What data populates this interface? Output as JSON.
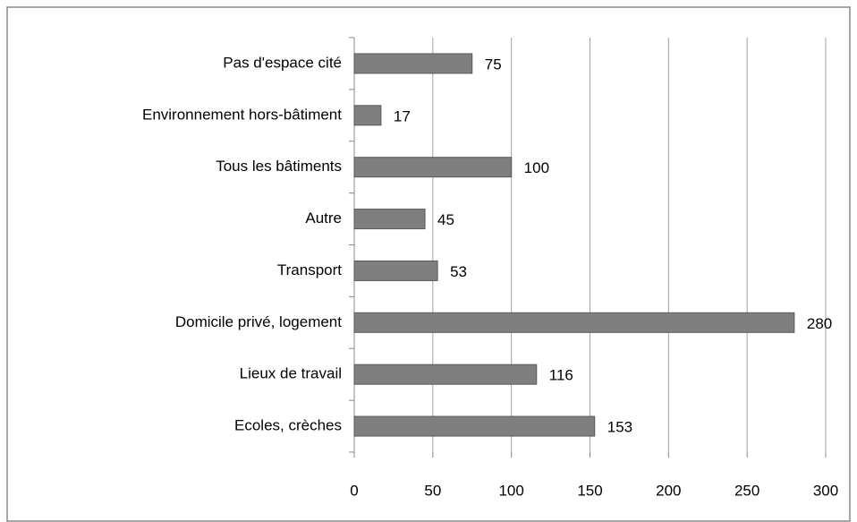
{
  "chart_data": {
    "type": "barh",
    "categories": [
      "Pas d'espace cité",
      "Environnement hors-bâtiment",
      "Tous les bâtiments",
      "Autre",
      "Transport",
      "Domicile privé, logement",
      "Lieux de travail",
      "Ecoles, crèches"
    ],
    "values": [
      75,
      17,
      100,
      45,
      53,
      280,
      116,
      153
    ],
    "color": "#7f7f7f",
    "xlim": [
      0,
      300
    ],
    "xticks": [
      0,
      50,
      100,
      150,
      200,
      250,
      300
    ],
    "grid": true
  }
}
